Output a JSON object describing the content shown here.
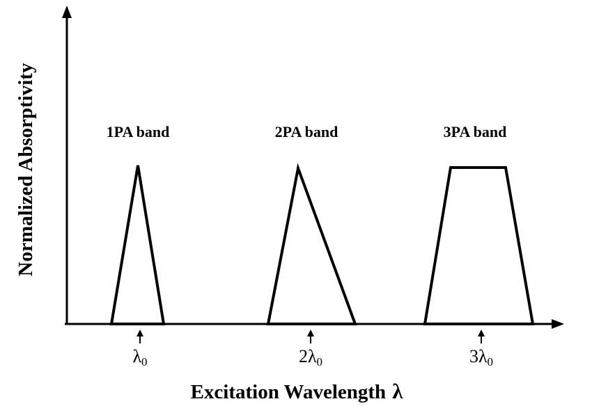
{
  "diagram": {
    "y_axis_title": "Normalized Absorptivity",
    "x_axis_title": "Excitation Wavelength",
    "x_axis_symbol": "λ",
    "bands": [
      {
        "id": "1pa",
        "label": "1PA band"
      },
      {
        "id": "2pa",
        "label": "2PA band"
      },
      {
        "id": "3pa",
        "label": "3PA band"
      }
    ],
    "ticks": [
      {
        "prefix": "",
        "symbol": "λ",
        "subscript": "0"
      },
      {
        "prefix": "2",
        "symbol": "λ",
        "subscript": "0"
      },
      {
        "prefix": "3",
        "symbol": "λ",
        "subscript": "0"
      }
    ]
  }
}
